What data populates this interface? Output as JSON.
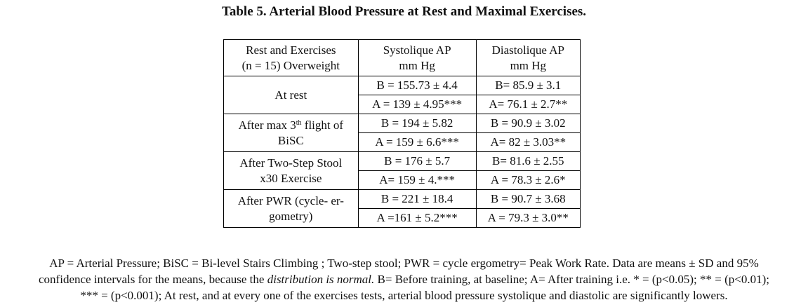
{
  "title": "Table 5. Arterial Blood Pressure at Rest and Maximal Exercises.",
  "table": {
    "headers": {
      "condition_line1": "Rest and Exercises",
      "condition_line2": "(n = 15) Overweight",
      "systolic_line1": "Systolique AP",
      "systolic_line2": "mm Hg",
      "diastolic_line1": "Diastolique AP",
      "diastolic_line2": "mm Hg"
    },
    "rows": [
      {
        "condition_line1": "At rest",
        "condition_line2": "",
        "before_systolic": "B = 155.73 ± 4.4",
        "before_diastolic": "B= 85.9 ± 3.1",
        "after_systolic": "A = 139 ± 4.95***",
        "after_diastolic": "A= 76.1 ± 2.7**"
      },
      {
        "condition_line1_pre": "After max 3",
        "condition_line1_sup": "th",
        "condition_line1_post": " flight of",
        "condition_line2": "BiSC",
        "before_systolic": "B = 194 ± 5.82",
        "before_diastolic": "B = 90.9 ± 3.02",
        "after_systolic": "A = 159 ± 6.6***",
        "after_diastolic": "A= 82 ± 3.03**"
      },
      {
        "condition_line1": "After Two-Step Stool",
        "condition_line2": "x30 Exercise",
        "before_systolic": "B = 176 ± 5.7",
        "before_diastolic": "B= 81.6 ± 2.55",
        "after_systolic": "A= 159 ± 4.***",
        "after_diastolic": "A = 78.3 ± 2.6*"
      },
      {
        "condition_line1": "After PWR (cycle- er-",
        "condition_line2": "gometry)",
        "before_systolic": "B = 221 ± 18.4",
        "before_diastolic": "B = 90.7 ± 3.68",
        "after_systolic": "A =161 ± 5.2***",
        "after_diastolic": "A = 79.3 ± 3.0**"
      }
    ]
  },
  "notes": {
    "part1": "AP = Arterial Pressure; BiSC = Bi-level Stairs Climbing ; Two-step stool; PWR = cycle ergometry= Peak Work Rate. Data are means ± SD and 95%",
    "part2a": "confidence intervals for the means, because the ",
    "part2_italic": "distribution is normal.",
    "part2b": " B= Before training, at baseline; A= After training i.e. * = (p<0.05); ** = (p<0.01);",
    "part3": "*** = (p<0.001); At rest, and at every one of the exercises tests, arterial blood pressure systolique and diastolic are significantly lowers."
  }
}
